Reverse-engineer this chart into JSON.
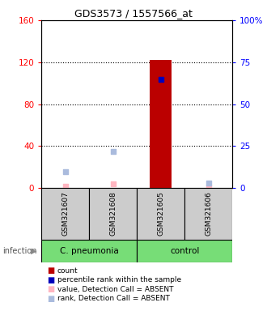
{
  "title": "GDS3573 / 1557566_at",
  "samples": [
    "GSM321607",
    "GSM321608",
    "GSM321605",
    "GSM321606"
  ],
  "scatter_data": {
    "GSM321607": {
      "rank_absent": 10,
      "value_absent": 2
    },
    "GSM321608": {
      "rank_absent": 22,
      "value_absent": 4
    },
    "GSM321605": {
      "count": 122,
      "rank_present": 65
    },
    "GSM321606": {
      "rank_absent": 3,
      "value_absent": 1
    }
  },
  "bar_color": "#BB0000",
  "dot_present_color": "#0000BB",
  "dot_absent_value_color": "#FFB6C1",
  "dot_absent_rank_color": "#AABBDD",
  "left_ylim": [
    0,
    160
  ],
  "left_yticks": [
    0,
    40,
    80,
    120,
    160
  ],
  "right_ylim": [
    0,
    100
  ],
  "right_yticks": [
    0,
    25,
    50,
    75,
    100
  ],
  "right_ytick_labels": [
    "0",
    "25",
    "50",
    "75",
    "100%"
  ],
  "group_pneumonia_label": "C. pneumonia",
  "group_control_label": "control",
  "group_color": "#77DD77",
  "sample_box_color": "#CCCCCC",
  "infection_label": "infection",
  "legend_items": [
    {
      "label": "count",
      "color": "#BB0000"
    },
    {
      "label": "percentile rank within the sample",
      "color": "#0000BB"
    },
    {
      "label": "value, Detection Call = ABSENT",
      "color": "#FFB6C1"
    },
    {
      "label": "rank, Detection Call = ABSENT",
      "color": "#AABBDD"
    }
  ]
}
